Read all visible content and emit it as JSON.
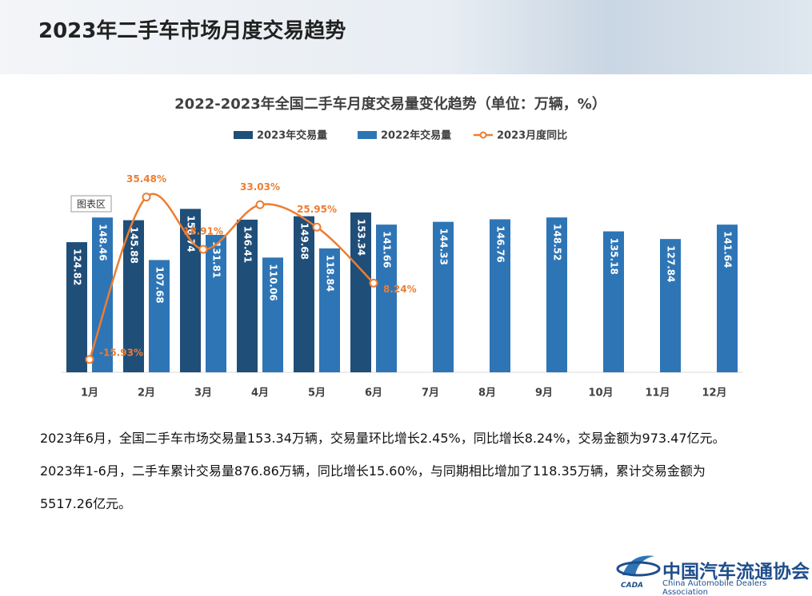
{
  "header": {
    "title": "2023年二手车市场月度交易趋势"
  },
  "chart_data": {
    "type": "bar",
    "title": "2022-2023年全国二手车月度交易量变化趋势（单位：万辆，%）",
    "tooltip": "图表区",
    "categories": [
      "1月",
      "2月",
      "3月",
      "4月",
      "5月",
      "6月",
      "7月",
      "8月",
      "9月",
      "10月",
      "11月",
      "12月"
    ],
    "ylim": [
      0,
      200
    ],
    "y2lim": [
      -20,
      46
    ],
    "series": [
      {
        "name": "2023年交易量",
        "type": "bar",
        "color": "#1f4e79",
        "values": [
          124.82,
          145.88,
          156.74,
          146.41,
          149.68,
          153.34,
          null,
          null,
          null,
          null,
          null,
          null
        ]
      },
      {
        "name": "2022年交易量",
        "type": "bar",
        "color": "#2e75b6",
        "values": [
          148.46,
          107.68,
          131.81,
          110.06,
          118.84,
          141.66,
          144.33,
          146.76,
          148.52,
          135.18,
          127.84,
          141.64
        ]
      },
      {
        "name": "2023月度同比",
        "type": "line",
        "axis": "y2",
        "color": "#ed7d31",
        "values": [
          -15.93,
          35.48,
          18.91,
          33.03,
          25.95,
          8.24,
          null,
          null,
          null,
          null,
          null,
          null
        ],
        "value_labels": [
          "-15.93%",
          "35.48%",
          "18.91%",
          "33.03%",
          "25.95%",
          "8.24%",
          null,
          null,
          null,
          null,
          null,
          null
        ]
      }
    ]
  },
  "paragraphs": [
    "2023年6月，全国二手车市场交易量153.34万辆，交易量环比增长2.45%，同比增长8.24%，交易金额为973.47亿元。",
    "2023年1-6月，二手车累计交易量876.86万辆，同比增长15.60%，与同期相比增加了118.35万辆，累计交易金额为5517.26亿元。"
  ],
  "logo": {
    "name": "中国汽车流通协会",
    "english": "China Automobile Dealers Association",
    "abbr": "CADA"
  }
}
